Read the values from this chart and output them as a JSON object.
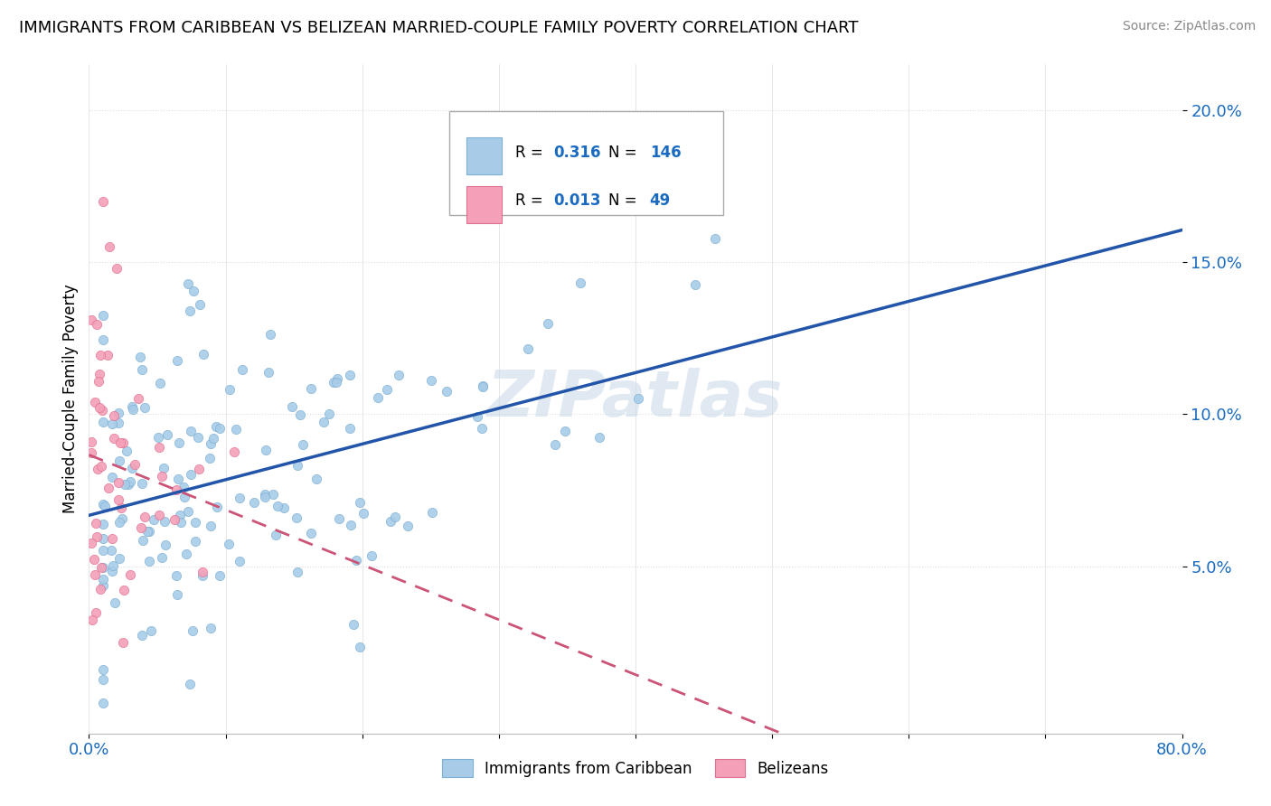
{
  "title": "IMMIGRANTS FROM CARIBBEAN VS BELIZEAN MARRIED-COUPLE FAMILY POVERTY CORRELATION CHART",
  "source": "Source: ZipAtlas.com",
  "ylabel": "Married-Couple Family Poverty",
  "xlim": [
    0.0,
    0.8
  ],
  "ylim": [
    -0.005,
    0.215
  ],
  "xtick_vals": [
    0.0,
    0.1,
    0.2,
    0.3,
    0.4,
    0.5,
    0.6,
    0.7,
    0.8
  ],
  "xticklabels": [
    "0.0%",
    "",
    "",
    "",
    "",
    "",
    "",
    "",
    "80.0%"
  ],
  "ytick_vals": [
    0.05,
    0.1,
    0.15,
    0.2
  ],
  "ytick_labels": [
    "5.0%",
    "10.0%",
    "15.0%",
    "20.0%"
  ],
  "watermark": "ZIPatlas",
  "series1_name": "Immigrants from Caribbean",
  "series1_color": "#a8cce8",
  "series1_edge": "#7bafd4",
  "series1_R": 0.316,
  "series1_N": 146,
  "series2_name": "Belizeans",
  "series2_color": "#f4a0b8",
  "series2_edge": "#e07090",
  "series2_R": 0.013,
  "series2_N": 49,
  "legend_color": "#1a6bbf",
  "trendline1_color": "#2255aa",
  "trendline2_color": "#cc5577",
  "grid_color": "#dddddd",
  "background_color": "#ffffff"
}
